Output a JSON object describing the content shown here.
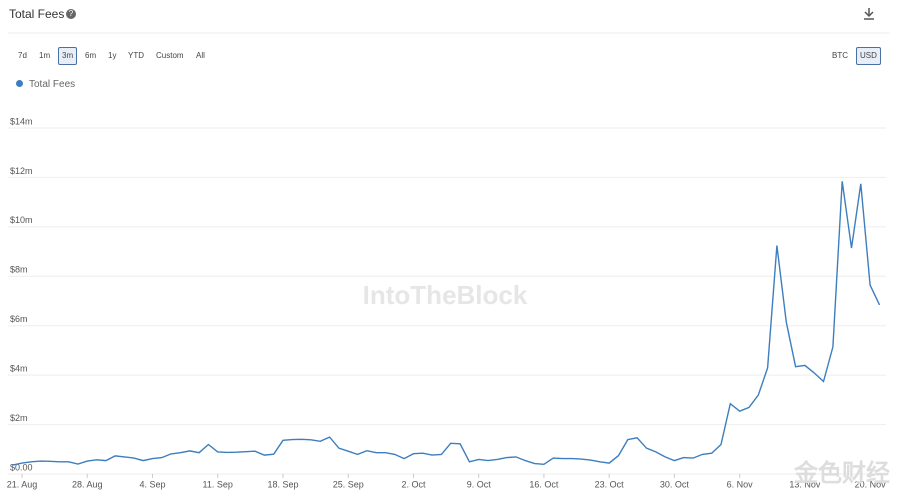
{
  "chart_data": {
    "type": "line",
    "title": "Total Fees",
    "x": [
      "20. Aug",
      "21. Aug",
      "22. Aug",
      "23. Aug",
      "24. Aug",
      "25. Aug",
      "26. Aug",
      "27. Aug",
      "28. Aug",
      "29. Aug",
      "30. Aug",
      "31. Aug",
      "1. Sep",
      "2. Sep",
      "3. Sep",
      "4. Sep",
      "5. Sep",
      "6. Sep",
      "7. Sep",
      "8. Sep",
      "9. Sep",
      "10. Sep",
      "11. Sep",
      "12. Sep",
      "13. Sep",
      "14. Sep",
      "15. Sep",
      "16. Sep",
      "17. Sep",
      "18. Sep",
      "19. Sep",
      "20. Sep",
      "21. Sep",
      "22. Sep",
      "23. Sep",
      "24. Sep",
      "25. Sep",
      "26. Sep",
      "27. Sep",
      "28. Sep",
      "29. Sep",
      "30. Sep",
      "1. Oct",
      "2. Oct",
      "3. Oct",
      "4. Oct",
      "5. Oct",
      "6. Oct",
      "7. Oct",
      "8. Oct",
      "9. Oct",
      "10. Oct",
      "11. Oct",
      "12. Oct",
      "13. Oct",
      "14. Oct",
      "15. Oct",
      "16. Oct",
      "17. Oct",
      "18. Oct",
      "19. Oct",
      "20. Oct",
      "21. Oct",
      "22. Oct",
      "23. Oct",
      "24. Oct",
      "25. Oct",
      "26. Oct",
      "27. Oct",
      "28. Oct",
      "29. Oct",
      "30. Oct",
      "31. Oct",
      "1. Nov",
      "2. Nov",
      "3. Nov",
      "4. Nov",
      "5. Nov",
      "6. Nov",
      "7. Nov",
      "8. Nov",
      "9. Nov",
      "10. Nov",
      "11. Nov",
      "12. Nov",
      "13. Nov",
      "14. Nov",
      "15. Nov",
      "16. Nov",
      "17. Nov",
      "18. Nov",
      "19. Nov",
      "20. Nov",
      "21. Nov"
    ],
    "series": [
      {
        "name": "Total Fees",
        "color": "#3d7ebf",
        "values": [
          0.12,
          0.2,
          0.25,
          0.28,
          0.27,
          0.25,
          0.25,
          0.16,
          0.28,
          0.33,
          0.3,
          0.49,
          0.45,
          0.4,
          0.3,
          0.38,
          0.42,
          0.57,
          0.62,
          0.69,
          0.62,
          0.95,
          0.65,
          0.63,
          0.64,
          0.66,
          0.68,
          0.52,
          0.56,
          1.12,
          1.15,
          1.16,
          1.14,
          1.08,
          1.25,
          0.8,
          0.68,
          0.55,
          0.7,
          0.62,
          0.62,
          0.55,
          0.38,
          0.58,
          0.6,
          0.52,
          0.55,
          1.0,
          0.98,
          0.25,
          0.35,
          0.3,
          0.35,
          0.42,
          0.45,
          0.3,
          0.18,
          0.15,
          0.4,
          0.38,
          0.38,
          0.36,
          0.32,
          0.25,
          0.2,
          0.5,
          1.15,
          1.22,
          0.8,
          0.65,
          0.45,
          0.3,
          0.42,
          0.4,
          0.55,
          0.6,
          0.95,
          2.6,
          2.3,
          2.45,
          2.95,
          4.05,
          9.0,
          5.9,
          4.1,
          4.15,
          3.85,
          3.5,
          4.9,
          11.6,
          8.9,
          11.5,
          7.4,
          6.6
        ]
      }
    ],
    "xticks": [
      "21. Aug",
      "28. Aug",
      "4. Sep",
      "11. Sep",
      "18. Sep",
      "25. Sep",
      "2. Oct",
      "9. Oct",
      "16. Oct",
      "23. Oct",
      "30. Oct",
      "6. Nov",
      "13. Nov",
      "20. Nov"
    ],
    "ylim": [
      0,
      14
    ],
    "yticks": [
      {
        "value": 0,
        "label": "$0.00"
      },
      {
        "value": 2,
        "label": "$2m"
      },
      {
        "value": 4,
        "label": "$4m"
      },
      {
        "value": 6,
        "label": "$6m"
      },
      {
        "value": 8,
        "label": "$8m"
      },
      {
        "value": 10,
        "label": "$10m"
      },
      {
        "value": 12,
        "label": "$12m"
      },
      {
        "value": 14,
        "label": "$14m"
      }
    ],
    "grid": true,
    "watermark": "IntoTheBlock"
  },
  "ui": {
    "ranges": [
      "7d",
      "1m",
      "3m",
      "6m",
      "1y",
      "YTD",
      "Custom",
      "All"
    ],
    "selected_range": "3m",
    "currencies": [
      "BTC",
      "USD"
    ],
    "selected_currency": "USD",
    "corner_logo": "金色财经"
  }
}
